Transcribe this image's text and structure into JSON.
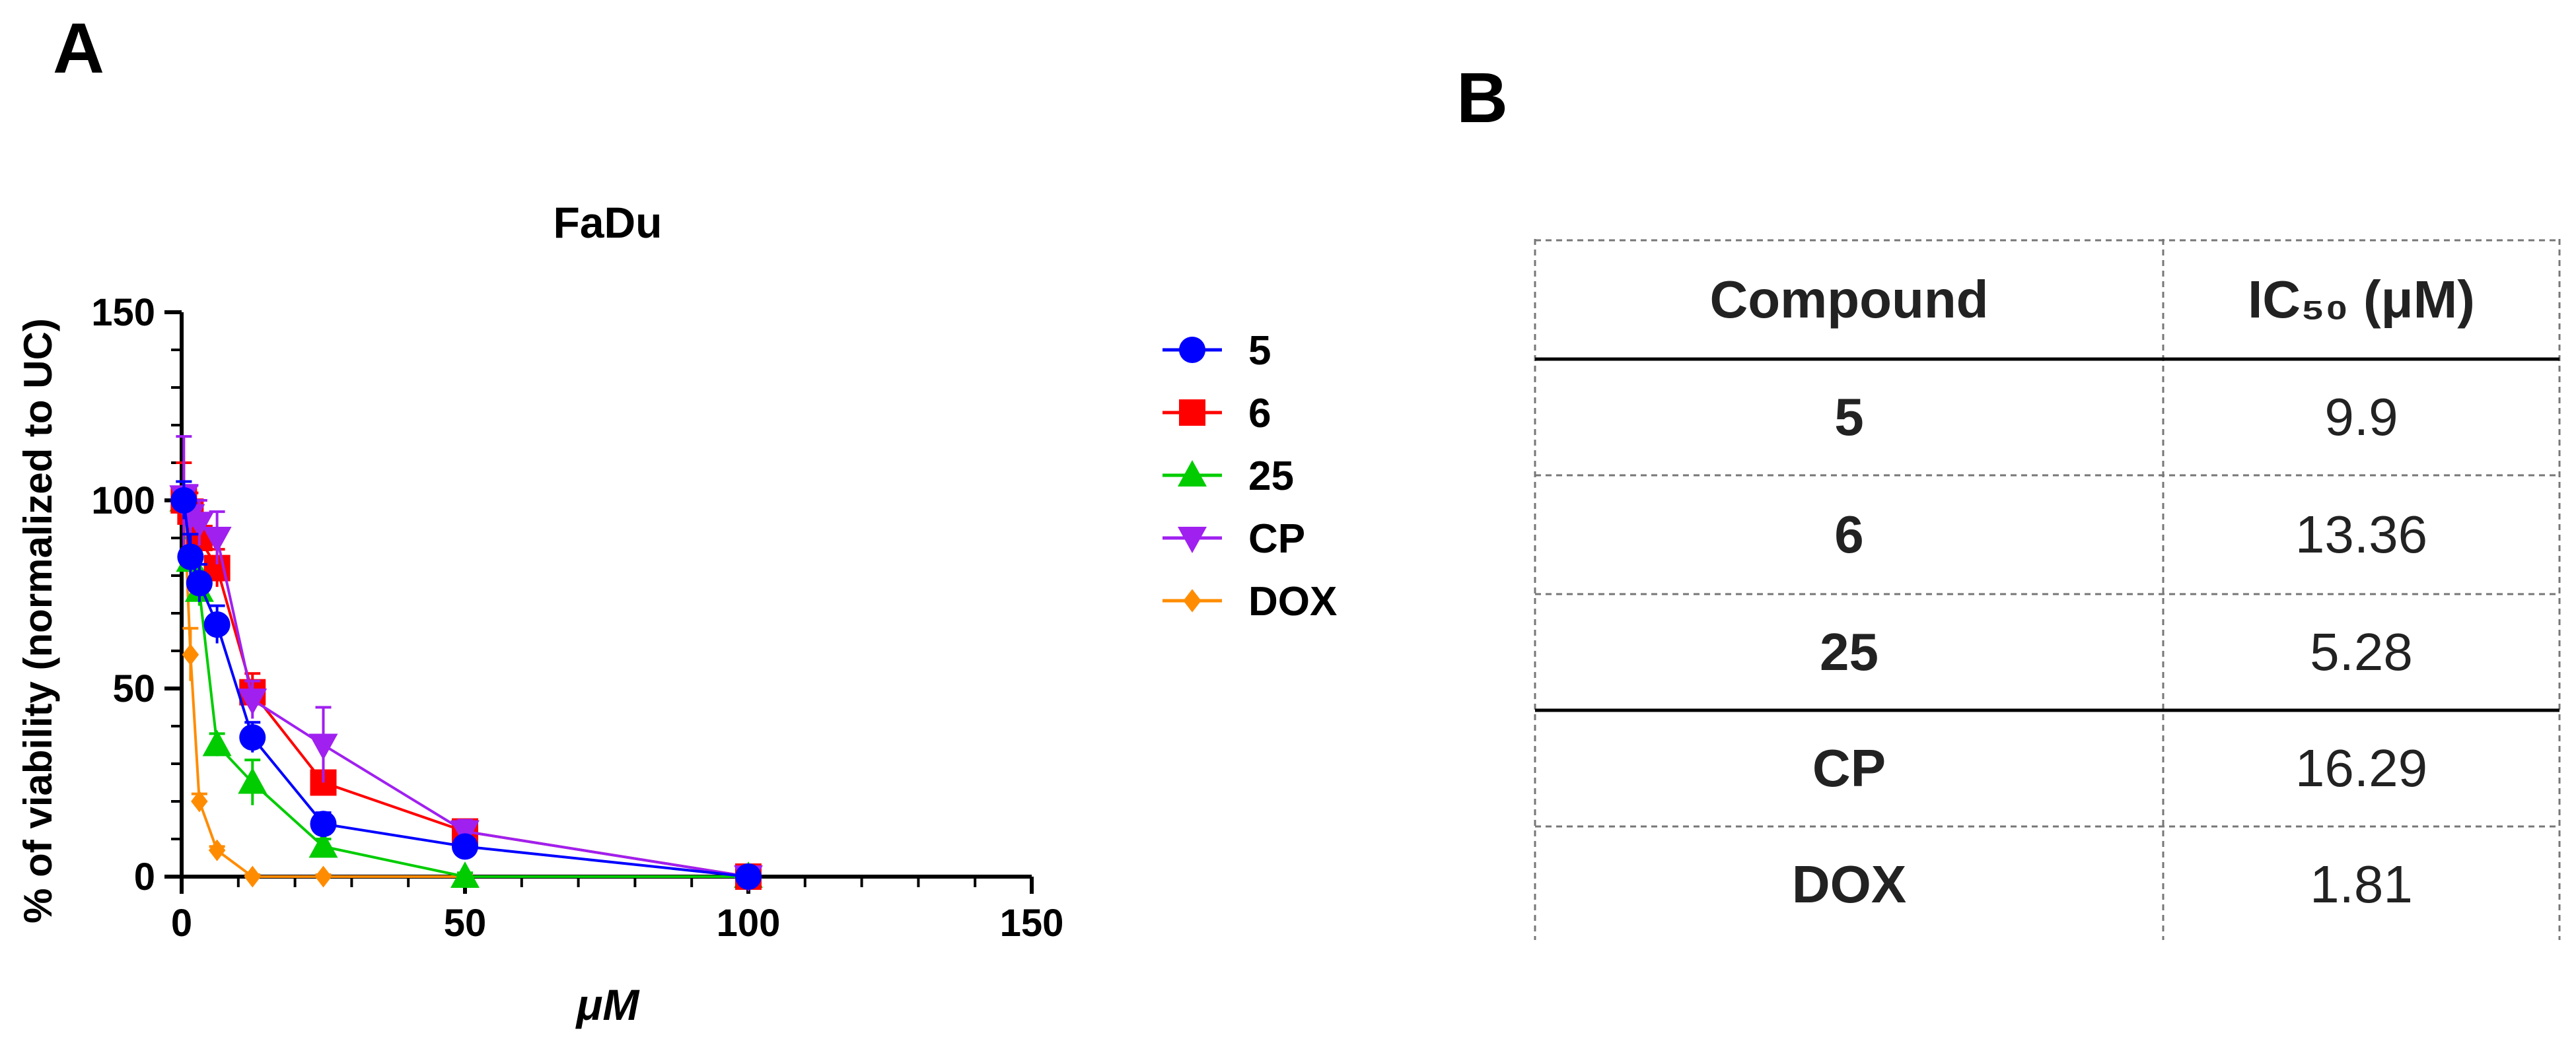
{
  "panels": {
    "a": "A",
    "b": "B"
  },
  "chart_data": {
    "type": "line",
    "title": "FaDu",
    "xlabel": "μM",
    "ylabel": "% of viability (normalized to UC)",
    "xlim": [
      0,
      150
    ],
    "ylim": [
      0,
      150
    ],
    "xticks": [
      0,
      50,
      100,
      150
    ],
    "yticks": [
      0,
      50,
      100,
      150
    ],
    "grid": false,
    "legend_position": "right",
    "series": [
      {
        "name": "5",
        "color": "#0000ff",
        "marker": "circle",
        "x": [
          0.39,
          1.56,
          3.13,
          6.25,
          12.5,
          25,
          50,
          100
        ],
        "y": [
          100,
          85,
          78,
          67,
          37,
          14,
          8,
          0
        ],
        "err": [
          5,
          6,
          5,
          5,
          4,
          3,
          2,
          1
        ]
      },
      {
        "name": "6",
        "color": "#ff0000",
        "marker": "square",
        "x": [
          0.39,
          1.56,
          3.13,
          6.25,
          12.5,
          25,
          50,
          100
        ],
        "y": [
          100,
          97,
          90,
          82,
          49,
          25,
          12,
          0
        ],
        "err": [
          10,
          5,
          5,
          5,
          5,
          3,
          2,
          1
        ]
      },
      {
        "name": "25",
        "color": "#00cc00",
        "marker": "triangle-up",
        "x": [
          0.39,
          1.56,
          3.13,
          6.25,
          12.5,
          25,
          50,
          100
        ],
        "y": [
          100,
          84,
          76,
          35,
          25,
          8,
          0,
          0
        ],
        "err": [
          5,
          6,
          4,
          3,
          6,
          2,
          1,
          1
        ]
      },
      {
        "name": "CP",
        "color": "#a020f0",
        "marker": "triangle-down",
        "x": [
          0.39,
          1.56,
          3.13,
          6.25,
          12.5,
          25,
          50,
          100
        ],
        "y": [
          101,
          96,
          94,
          90,
          47,
          35,
          12,
          0
        ],
        "err": [
          16,
          8,
          6,
          7,
          5,
          10,
          3,
          1
        ]
      },
      {
        "name": "DOX",
        "color": "#ff8c00",
        "marker": "diamond",
        "x": [
          0.39,
          1.56,
          3.13,
          6.25,
          12.5,
          25,
          50,
          100
        ],
        "y": [
          100,
          59,
          20,
          7,
          0,
          0,
          0,
          0
        ],
        "err": [
          5,
          7,
          2,
          1,
          0.5,
          0.5,
          0.5,
          0.5
        ]
      }
    ]
  },
  "table": {
    "headers": [
      "Compound",
      "IC₅₀ (μM)"
    ],
    "rows": [
      [
        "5",
        "9.9"
      ],
      [
        "6",
        "13.36"
      ],
      [
        "25",
        "5.28"
      ],
      [
        "CP",
        "16.29"
      ],
      [
        "DOX",
        "1.81"
      ]
    ]
  }
}
